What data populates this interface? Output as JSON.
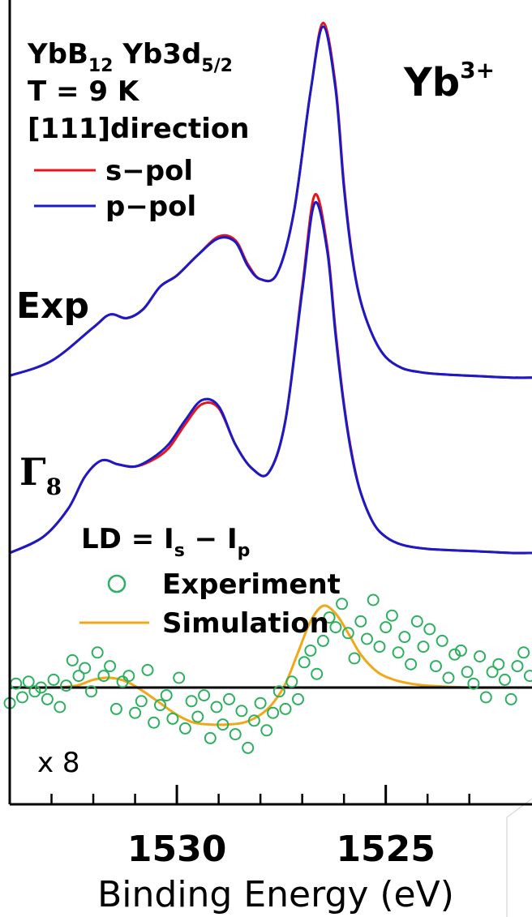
{
  "chart_data": {
    "type": "line",
    "xlabel": "Binding Energy (eV)",
    "x_reversed": true,
    "xlim": [
      1534,
      1521.5
    ],
    "xticks_major": [
      1530,
      1525
    ],
    "xticks_minor": [
      1533,
      1532,
      1531,
      1529,
      1528,
      1527,
      1526,
      1524,
      1523
    ],
    "header": {
      "line1_main": "YbB",
      "line1_sub1": "12",
      "line1_mid": " Yb3d",
      "line1_sub2": "5/2",
      "line2": "T = 9 K",
      "line3": "[111]direction"
    },
    "corner_label": {
      "main": "Yb",
      "sup": "3+"
    },
    "legend_top": [
      {
        "label": "s−pol",
        "color": "#e8141c"
      },
      {
        "label": "p−pol",
        "color": "#1a1ac8"
      }
    ],
    "label_exp": "Exp",
    "label_gamma": {
      "main": "Γ",
      "sub": "8"
    },
    "ld_label": {
      "prefix": "LD = I",
      "sub_s": "s",
      "mid": " − I",
      "sub_p": "p"
    },
    "legend_ld": [
      {
        "label": "Experiment",
        "color": "#2db060",
        "marker": "circle"
      },
      {
        "label": "Simulation",
        "color": "#f0a818",
        "marker": "line"
      }
    ],
    "scale_label": "x 8",
    "series_exp": {
      "x": [
        1534.0,
        1533.0,
        1532.0,
        1531.6,
        1531.2,
        1530.8,
        1530.4,
        1530.0,
        1529.5,
        1529.0,
        1528.6,
        1528.3,
        1528.0,
        1527.6,
        1527.2,
        1526.8,
        1526.5,
        1526.2,
        1526.0,
        1525.8,
        1525.6,
        1525.3,
        1525.0,
        1524.6,
        1524.2,
        1523.8,
        1523.0,
        1522.0,
        1521.5
      ],
      "s_pol": [
        0.02,
        0.1,
        0.28,
        0.35,
        0.33,
        0.38,
        0.5,
        0.56,
        0.67,
        0.77,
        0.75,
        0.62,
        0.54,
        0.57,
        0.9,
        1.55,
        1.92,
        1.58,
        1.05,
        0.66,
        0.42,
        0.23,
        0.12,
        0.06,
        0.04,
        0.03,
        0.02,
        0.01,
        0.01
      ],
      "p_pol": [
        0.02,
        0.1,
        0.28,
        0.35,
        0.33,
        0.38,
        0.5,
        0.56,
        0.67,
        0.76,
        0.74,
        0.61,
        0.54,
        0.57,
        0.9,
        1.55,
        1.9,
        1.56,
        1.03,
        0.65,
        0.42,
        0.23,
        0.12,
        0.06,
        0.04,
        0.03,
        0.02,
        0.01,
        0.01
      ]
    },
    "series_gamma8": {
      "x": [
        1534.0,
        1533.2,
        1532.6,
        1532.2,
        1531.8,
        1531.4,
        1531.0,
        1530.6,
        1530.2,
        1529.8,
        1529.4,
        1529.0,
        1528.6,
        1528.2,
        1527.8,
        1527.4,
        1527.0,
        1526.7,
        1526.4,
        1526.2,
        1526.0,
        1525.8,
        1525.6,
        1525.3,
        1525.0,
        1524.6,
        1524.0,
        1523.0,
        1522.0,
        1521.5
      ],
      "s_pol": [
        0.0,
        0.08,
        0.22,
        0.38,
        0.46,
        0.44,
        0.43,
        0.46,
        0.52,
        0.64,
        0.74,
        0.72,
        0.54,
        0.42,
        0.4,
        0.66,
        1.32,
        1.78,
        1.52,
        1.1,
        0.74,
        0.48,
        0.3,
        0.15,
        0.08,
        0.04,
        0.02,
        0.01,
        0.0,
        0.0
      ],
      "p_pol": [
        0.0,
        0.08,
        0.22,
        0.38,
        0.46,
        0.44,
        0.43,
        0.47,
        0.54,
        0.66,
        0.76,
        0.73,
        0.54,
        0.42,
        0.4,
        0.66,
        1.3,
        1.74,
        1.5,
        1.08,
        0.73,
        0.47,
        0.3,
        0.15,
        0.08,
        0.04,
        0.02,
        0.01,
        0.0,
        0.0
      ]
    },
    "series_ld_simulation": {
      "x": [
        1534.0,
        1533.0,
        1532.4,
        1532.0,
        1531.6,
        1531.2,
        1530.8,
        1530.4,
        1530.0,
        1529.6,
        1529.2,
        1528.8,
        1528.4,
        1528.0,
        1527.7,
        1527.4,
        1527.1,
        1526.8,
        1526.5,
        1526.2,
        1525.9,
        1525.6,
        1525.2,
        1524.8,
        1524.4,
        1524.0,
        1523.0,
        1522.0,
        1521.5
      ],
      "values": [
        0.0,
        0.0,
        0.01,
        0.04,
        0.05,
        0.03,
        -0.02,
        -0.08,
        -0.14,
        -0.18,
        -0.19,
        -0.19,
        -0.18,
        -0.14,
        -0.08,
        0.02,
        0.18,
        0.34,
        0.42,
        0.38,
        0.28,
        0.17,
        0.08,
        0.04,
        0.02,
        0.01,
        0.0,
        0.0,
        0.0
      ]
    },
    "series_ld_experiment": {
      "x": [
        1534.0,
        1533.85,
        1533.7,
        1533.55,
        1533.4,
        1533.25,
        1533.1,
        1532.95,
        1532.8,
        1532.65,
        1532.5,
        1532.35,
        1532.2,
        1532.05,
        1531.9,
        1531.75,
        1531.6,
        1531.45,
        1531.3,
        1531.15,
        1531.0,
        1530.85,
        1530.7,
        1530.55,
        1530.4,
        1530.25,
        1530.1,
        1529.95,
        1529.8,
        1529.65,
        1529.5,
        1529.35,
        1529.2,
        1529.05,
        1528.9,
        1528.75,
        1528.6,
        1528.45,
        1528.3,
        1528.15,
        1528.0,
        1527.85,
        1527.7,
        1527.55,
        1527.4,
        1527.25,
        1527.1,
        1526.95,
        1526.8,
        1526.65,
        1526.5,
        1526.35,
        1526.2,
        1526.05,
        1525.9,
        1525.75,
        1525.6,
        1525.45,
        1525.3,
        1525.15,
        1525.0,
        1524.85,
        1524.7,
        1524.55,
        1524.4,
        1524.25,
        1524.1,
        1523.95,
        1523.8,
        1523.65,
        1523.5,
        1523.35,
        1523.2,
        1523.05,
        1522.9,
        1522.75,
        1522.6,
        1522.45,
        1522.3,
        1522.15,
        1522.0,
        1521.85,
        1521.7,
        1521.55
      ],
      "values": [
        -0.08,
        0.02,
        -0.05,
        0.03,
        -0.02,
        0.0,
        -0.06,
        0.04,
        -0.1,
        0.01,
        0.14,
        0.06,
        0.1,
        -0.02,
        0.18,
        0.06,
        0.11,
        -0.11,
        0.03,
        0.06,
        -0.13,
        -0.07,
        0.09,
        -0.18,
        -0.09,
        -0.04,
        -0.16,
        0.05,
        -0.21,
        -0.07,
        -0.15,
        -0.04,
        -0.26,
        -0.1,
        -0.19,
        -0.06,
        -0.24,
        -0.12,
        -0.31,
        -0.17,
        -0.08,
        -0.22,
        -0.13,
        -0.02,
        -0.11,
        0.03,
        -0.06,
        0.13,
        0.19,
        0.07,
        0.24,
        0.36,
        0.31,
        0.43,
        0.28,
        0.15,
        0.34,
        0.25,
        0.45,
        0.21,
        0.31,
        0.37,
        0.18,
        0.26,
        0.12,
        0.34,
        0.21,
        0.3,
        0.11,
        0.24,
        0.05,
        0.17,
        0.19,
        0.08,
        0.02,
        0.16,
        -0.05,
        0.08,
        0.12,
        0.04,
        -0.06,
        0.11,
        0.18,
        0.06
      ]
    }
  }
}
